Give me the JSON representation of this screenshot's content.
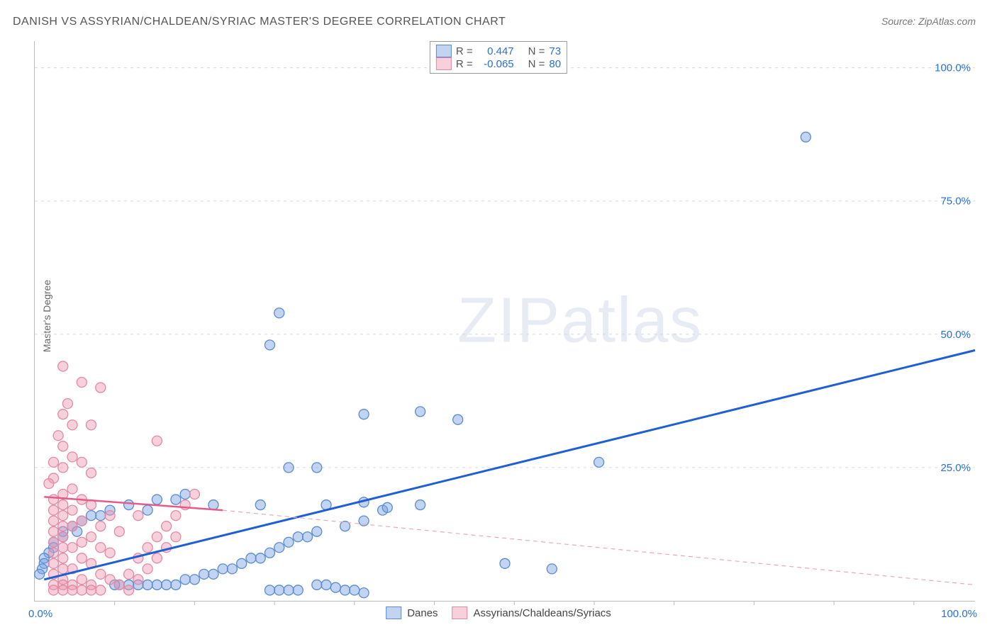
{
  "title": "DANISH VS ASSYRIAN/CHALDEAN/SYRIAC MASTER'S DEGREE CORRELATION CHART",
  "source": "Source: ZipAtlas.com",
  "watermark_bold": "ZIP",
  "watermark_light": "atlas",
  "y_axis_title": "Master's Degree",
  "chart": {
    "type": "scatter",
    "xlim": [
      0,
      100
    ],
    "ylim": [
      0,
      105
    ],
    "x_origin_label": "0.0%",
    "x_max_label": "100.0%",
    "x_ticks": [
      8.5,
      17,
      25.5,
      34,
      42.5,
      51,
      59.5,
      68,
      76.5,
      85,
      93.5
    ],
    "y_gridlines": [
      25,
      50,
      75,
      100
    ],
    "y_tick_labels": [
      "25.0%",
      "50.0%",
      "75.0%",
      "100.0%"
    ],
    "marker_radius": 7,
    "marker_stroke_width": 1.3,
    "series": [
      {
        "name": "Danes",
        "fill": "rgba(120,160,225,0.45)",
        "stroke": "#5a8bd0",
        "points": [
          [
            82,
            87
          ],
          [
            26,
            54
          ],
          [
            25,
            48
          ],
          [
            35,
            35
          ],
          [
            41,
            35.5
          ],
          [
            45,
            34
          ],
          [
            60,
            26
          ],
          [
            27,
            25
          ],
          [
            30,
            25
          ],
          [
            41,
            18
          ],
          [
            35,
            18.5
          ],
          [
            31,
            18
          ],
          [
            24,
            18
          ],
          [
            37,
            17
          ],
          [
            37.5,
            17.5
          ],
          [
            19,
            18
          ],
          [
            16,
            20
          ],
          [
            15,
            19
          ],
          [
            13,
            19
          ],
          [
            10,
            18
          ],
          [
            12,
            17
          ],
          [
            8,
            17
          ],
          [
            7,
            16
          ],
          [
            6,
            16
          ],
          [
            5,
            15
          ],
          [
            4,
            14
          ],
          [
            4.5,
            13
          ],
          [
            3,
            13
          ],
          [
            3,
            12
          ],
          [
            2,
            11
          ],
          [
            2,
            10
          ],
          [
            1.5,
            9
          ],
          [
            1,
            8
          ],
          [
            1,
            7
          ],
          [
            0.8,
            6
          ],
          [
            0.5,
            5
          ],
          [
            35,
            15
          ],
          [
            33,
            14
          ],
          [
            30,
            13
          ],
          [
            29,
            12
          ],
          [
            28,
            12
          ],
          [
            27,
            11
          ],
          [
            26,
            10
          ],
          [
            25,
            9
          ],
          [
            24,
            8
          ],
          [
            23,
            8
          ],
          [
            22,
            7
          ],
          [
            21,
            6
          ],
          [
            20,
            6
          ],
          [
            19,
            5
          ],
          [
            18,
            5
          ],
          [
            17,
            4
          ],
          [
            16,
            4
          ],
          [
            15,
            3
          ],
          [
            14,
            3
          ],
          [
            13,
            3
          ],
          [
            12,
            3
          ],
          [
            11,
            3
          ],
          [
            10,
            3
          ],
          [
            9,
            3
          ],
          [
            8.5,
            3
          ],
          [
            30,
            3
          ],
          [
            31,
            3
          ],
          [
            32,
            2.5
          ],
          [
            33,
            2
          ],
          [
            34,
            2
          ],
          [
            35,
            1.5
          ],
          [
            28,
            2
          ],
          [
            27,
            2
          ],
          [
            26,
            2
          ],
          [
            25,
            2
          ],
          [
            55,
            6
          ],
          [
            50,
            7
          ]
        ],
        "trend": {
          "x1": 1,
          "y1": 4,
          "x2": 100,
          "y2": 47,
          "stroke": "#1e5fd6",
          "width": 3,
          "dash": ""
        }
      },
      {
        "name": "Assyrians/Chaldeans/Syriacs",
        "fill": "rgba(240,150,175,0.45)",
        "stroke": "#e08aa5",
        "points": [
          [
            3,
            44
          ],
          [
            5,
            41
          ],
          [
            7,
            40
          ],
          [
            3.5,
            37
          ],
          [
            3,
            35
          ],
          [
            4,
            33
          ],
          [
            6,
            33
          ],
          [
            2.5,
            31
          ],
          [
            13,
            30
          ],
          [
            3,
            29
          ],
          [
            4,
            27
          ],
          [
            5,
            26
          ],
          [
            2,
            26
          ],
          [
            3,
            25
          ],
          [
            6,
            24
          ],
          [
            2,
            23
          ],
          [
            1.5,
            22
          ],
          [
            4,
            21
          ],
          [
            3,
            20
          ],
          [
            5,
            19
          ],
          [
            2,
            19
          ],
          [
            6,
            18
          ],
          [
            3,
            18
          ],
          [
            4,
            17
          ],
          [
            2,
            17
          ],
          [
            8,
            16
          ],
          [
            3,
            16
          ],
          [
            5,
            15
          ],
          [
            2,
            15
          ],
          [
            7,
            14
          ],
          [
            4,
            14
          ],
          [
            3,
            14
          ],
          [
            9,
            13
          ],
          [
            11,
            16
          ],
          [
            2,
            13
          ],
          [
            6,
            12
          ],
          [
            3,
            12
          ],
          [
            5,
            11
          ],
          [
            2,
            11
          ],
          [
            4,
            10
          ],
          [
            7,
            10
          ],
          [
            3,
            10
          ],
          [
            8,
            9
          ],
          [
            2,
            9
          ],
          [
            5,
            8
          ],
          [
            3,
            8
          ],
          [
            6,
            7
          ],
          [
            2,
            7
          ],
          [
            4,
            6
          ],
          [
            3,
            6
          ],
          [
            7,
            5
          ],
          [
            2,
            5
          ],
          [
            5,
            4
          ],
          [
            3,
            4
          ],
          [
            8,
            4
          ],
          [
            4,
            3
          ],
          [
            2,
            3
          ],
          [
            6,
            3
          ],
          [
            3,
            3
          ],
          [
            9,
            3
          ],
          [
            5,
            2
          ],
          [
            2,
            2
          ],
          [
            7,
            2
          ],
          [
            4,
            2
          ],
          [
            10,
            2
          ],
          [
            3,
            2
          ],
          [
            6,
            2
          ],
          [
            11,
            8
          ],
          [
            12,
            10
          ],
          [
            13,
            12
          ],
          [
            14,
            14
          ],
          [
            15,
            16
          ],
          [
            16,
            18
          ],
          [
            17,
            20
          ],
          [
            10,
            5
          ],
          [
            11,
            4
          ],
          [
            12,
            6
          ],
          [
            13,
            8
          ],
          [
            14,
            10
          ],
          [
            15,
            12
          ]
        ],
        "trend_solid": {
          "x1": 1,
          "y1": 19.5,
          "x2": 20,
          "y2": 17,
          "stroke": "#e65a8a",
          "width": 2.5,
          "dash": ""
        },
        "trend_dash": {
          "x1": 20,
          "y1": 17,
          "x2": 100,
          "y2": 3,
          "stroke": "#e8a8bb",
          "width": 1.2,
          "dash": "6,5"
        }
      }
    ]
  },
  "stats_legend": {
    "rows": [
      {
        "swatch_fill": "rgba(120,160,225,0.45)",
        "swatch_stroke": "#5a8bd0",
        "r_label": "R =",
        "r_value": "0.447",
        "n_label": "N =",
        "n_value": "73"
      },
      {
        "swatch_fill": "rgba(240,150,175,0.45)",
        "swatch_stroke": "#e08aa5",
        "r_label": "R =",
        "r_value": "-0.065",
        "n_label": "N =",
        "n_value": "80"
      }
    ],
    "value_color": "#2a6fd6",
    "label_color": "#555"
  },
  "bottom_legend": {
    "items": [
      {
        "swatch_fill": "rgba(120,160,225,0.45)",
        "swatch_stroke": "#5a8bd0",
        "label": "Danes"
      },
      {
        "swatch_fill": "rgba(240,150,175,0.45)",
        "swatch_stroke": "#e08aa5",
        "label": "Assyrians/Chaldeans/Syriacs"
      }
    ]
  }
}
